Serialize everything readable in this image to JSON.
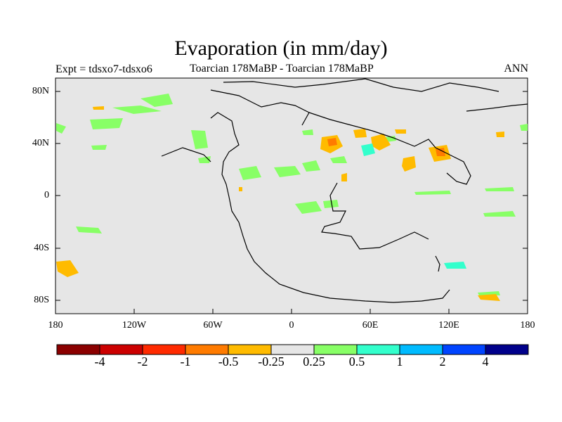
{
  "title": "Evaporation (in mm/day)",
  "left_label": "Expt = tdsxo7-tdsxo6",
  "center_label": "Toarcian 178MaBP - Toarcian 178MaBP",
  "right_label": "ANN",
  "lat_ticks": [
    "80N",
    "40N",
    "0",
    "40S",
    "80S"
  ],
  "lon_ticks": [
    "180",
    "120W",
    "60W",
    "0",
    "60E",
    "120E",
    "180"
  ],
  "colorbar": {
    "colors": [
      "#8b0000",
      "#cc0000",
      "#ff2a00",
      "#ff7b00",
      "#ffbb00",
      "#e6e6e6",
      "#88ff66",
      "#33ffcc",
      "#00bbff",
      "#0044ff",
      "#00008b"
    ],
    "labels": [
      "-4",
      "-2",
      "-1",
      "-0.5",
      "-0.25",
      "0.25",
      "0.5",
      "1",
      "2",
      "4"
    ]
  },
  "colors": {
    "ocean_fill": "#e6e6e6",
    "positive_low": "#88ff66",
    "negative_low": "#ffbb00",
    "negative_mid": "#ff7b00",
    "positive_mid": "#33ffcc",
    "coast": "#000000"
  }
}
